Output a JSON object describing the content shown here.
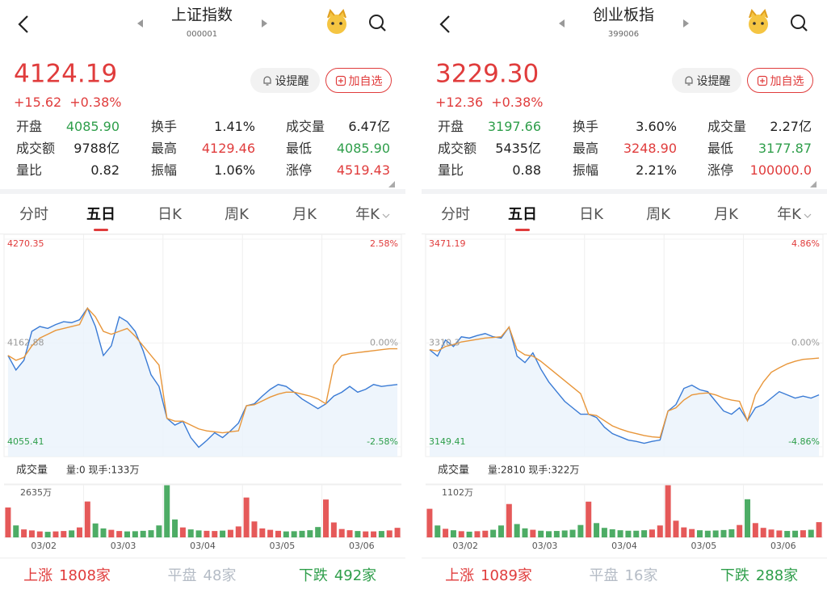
{
  "colors": {
    "up": "#e03c3c",
    "down": "#2e9e4a",
    "flat": "#b5bcc6"
  },
  "panels": [
    {
      "title": "上证指数",
      "code": "000001",
      "price": "4124.19",
      "change": "+15.62",
      "change_pct": "+0.38%",
      "buttons": [
        "设提醒",
        "加自选"
      ],
      "stats": [
        [
          {
            "label": "开盘",
            "value": "4085.90",
            "color": "#2e9e4a"
          },
          {
            "label": "换手",
            "value": "1.41%"
          },
          {
            "label": "成交量",
            "value": "6.47亿"
          }
        ],
        [
          {
            "label": "成交额",
            "value": "9788亿"
          },
          {
            "label": "最高",
            "value": "4129.46",
            "color": "#e03c3c"
          },
          {
            "label": "最低",
            "value": "4085.90",
            "color": "#2e9e4a"
          }
        ],
        [
          {
            "label": "量比",
            "value": "0.82"
          },
          {
            "label": "振幅",
            "value": "1.06%"
          },
          {
            "label": "涨停",
            "value": "4519.43",
            "color": "#e03c3c"
          }
        ]
      ],
      "tabs": [
        "分时",
        "五日",
        "日K",
        "周K",
        "月K",
        "年K"
      ],
      "active_tab": 1,
      "chart": {
        "type": "line",
        "ylim": [
          4055.41,
          4270.35
        ],
        "yticks": [
          4270.35,
          4162.88,
          4055.41
        ],
        "pct_ticks": [
          {
            "value": 2.58,
            "label": "2.58%"
          },
          {
            "value": 0,
            "label": "0.00%"
          },
          {
            "value": -2.58,
            "label": "-2.58%"
          }
        ],
        "categories": [
          "03/02",
          "03/03",
          "03/04",
          "03/05",
          "03/06"
        ],
        "series": [
          {
            "color": "#3a7bd5",
            "values": [
              4150,
              4135,
              4145,
              4175,
              4180,
              4178,
              4182,
              4185,
              4184,
              4187,
              4199,
              4180,
              4150,
              4160,
              4190,
              4185,
              4175,
              4155,
              4130,
              4118,
              4085,
              4078,
              4082,
              4065,
              4055,
              4062,
              4070,
              4065,
              4072,
              4080,
              4098,
              4100,
              4108,
              4115,
              4120,
              4118,
              4112,
              4105,
              4100,
              4095,
              4100,
              4108,
              4112,
              4118,
              4112,
              4115,
              4120,
              4118,
              4119,
              4120
            ]
          },
          {
            "color": "#e8963a",
            "values": [
              4150,
              4145,
              4148,
              4160,
              4168,
              4172,
              4176,
              4178,
              4180,
              4182,
              4199,
              4190,
              4175,
              4172,
              4175,
              4178,
              4170,
              4160,
              4150,
              4140,
              4085,
              4082,
              4082,
              4078,
              4074,
              4072,
              4071,
              4070,
              4071,
              4072,
              4098,
              4099,
              4103,
              4107,
              4110,
              4112,
              4112,
              4110,
              4108,
              4105,
              4100,
              4140,
              4150,
              4152,
              4153,
              4154,
              4155,
              4156,
              4157,
              4157
            ]
          }
        ]
      },
      "volume": {
        "type": "bar",
        "label": "成交量",
        "info": "量:0 现手:133万",
        "ylim": [
          0,
          2635
        ],
        "yticks": [
          {
            "value": 2635,
            "label": "2635万"
          }
        ],
        "values": [
          1500,
          600,
          400,
          350,
          300,
          280,
          300,
          320,
          350,
          500,
          1800,
          700,
          450,
          380,
          320,
          300,
          310,
          330,
          360,
          600,
          2635,
          900,
          500,
          400,
          350,
          330,
          320,
          340,
          380,
          550,
          2000,
          800,
          450,
          380,
          330,
          300,
          310,
          330,
          360,
          520,
          1900,
          750,
          420,
          360,
          320,
          300,
          300,
          320,
          350,
          480
        ]
      },
      "breadth": [
        {
          "label": "上涨",
          "value": "1808家",
          "color": "#e03c3c"
        },
        {
          "label": "平盘",
          "value": "48家",
          "color": "#b5bcc6"
        },
        {
          "label": "下跌",
          "value": "492家",
          "color": "#2e9e4a"
        }
      ]
    },
    {
      "title": "创业板指",
      "code": "399006",
      "price": "3229.30",
      "change": "+12.36",
      "change_pct": "+0.38%",
      "buttons": [
        "设提醒",
        "加自选"
      ],
      "stats": [
        [
          {
            "label": "开盘",
            "value": "3197.66",
            "color": "#2e9e4a"
          },
          {
            "label": "换手",
            "value": "3.60%"
          },
          {
            "label": "成交量",
            "value": "2.27亿"
          }
        ],
        [
          {
            "label": "成交额",
            "value": "5435亿"
          },
          {
            "label": "最高",
            "value": "3248.90",
            "color": "#e03c3c"
          },
          {
            "label": "最低",
            "value": "3177.87",
            "color": "#2e9e4a"
          }
        ],
        [
          {
            "label": "量比",
            "value": "0.88"
          },
          {
            "label": "振幅",
            "value": "2.21%"
          },
          {
            "label": "涨停",
            "value": "100000.0",
            "color": "#e03c3c"
          }
        ]
      ],
      "tabs": [
        "分时",
        "五日",
        "日K",
        "周K",
        "月K",
        "年K"
      ],
      "active_tab": 1,
      "chart": {
        "type": "line",
        "ylim": [
          3149.41,
          3471.19
        ],
        "yticks": [
          3471.19,
          3310.3,
          3149.41
        ],
        "pct_ticks": [
          {
            "value": 4.86,
            "label": "4.86%"
          },
          {
            "value": 0,
            "label": "0.00%"
          },
          {
            "value": -4.86,
            "label": "-4.86%"
          }
        ],
        "categories": [
          "03/02",
          "03/03",
          "03/04",
          "03/05",
          "03/06"
        ],
        "series": [
          {
            "color": "#3a7bd5",
            "values": [
              3300,
              3290,
              3315,
              3305,
              3320,
              3318,
              3322,
              3325,
              3320,
              3318,
              3335,
              3290,
              3280,
              3295,
              3270,
              3250,
              3235,
              3220,
              3210,
              3200,
              3200,
              3195,
              3180,
              3170,
              3165,
              3160,
              3158,
              3155,
              3158,
              3160,
              3205,
              3215,
              3240,
              3245,
              3238,
              3235,
              3220,
              3205,
              3200,
              3210,
              3190,
              3210,
              3215,
              3225,
              3235,
              3230,
              3225,
              3228,
              3225,
              3230
            ]
          },
          {
            "color": "#e8963a",
            "values": [
              3300,
              3298,
              3305,
              3308,
              3312,
              3314,
              3316,
              3318,
              3319,
              3320,
              3335,
              3300,
              3292,
              3290,
              3282,
              3272,
              3262,
              3252,
              3242,
              3232,
              3200,
              3198,
              3190,
              3182,
              3177,
              3173,
              3170,
              3167,
              3165,
              3164,
              3205,
              3210,
              3222,
              3230,
              3232,
              3233,
              3230,
              3225,
              3222,
              3220,
              3190,
              3230,
              3250,
              3265,
              3272,
              3278,
              3282,
              3285,
              3286,
              3287
            ]
          }
        ]
      },
      "volume": {
        "type": "bar",
        "label": "成交量",
        "info": "量:2810 现手:322万",
        "ylim": [
          0,
          1102
        ],
        "yticks": [
          {
            "value": 1102,
            "label": "1102万"
          }
        ],
        "values": [
          600,
          250,
          180,
          150,
          130,
          120,
          130,
          140,
          160,
          250,
          700,
          280,
          190,
          160,
          140,
          130,
          135,
          145,
          160,
          260,
          750,
          300,
          200,
          170,
          150,
          140,
          140,
          150,
          165,
          250,
          1102,
          350,
          210,
          175,
          150,
          140,
          145,
          155,
          170,
          260,
          800,
          300,
          200,
          165,
          145,
          135,
          140,
          150,
          160,
          320
        ]
      },
      "breadth": [
        {
          "label": "上涨",
          "value": "1089家",
          "color": "#e03c3c"
        },
        {
          "label": "平盘",
          "value": "16家",
          "color": "#b5bcc6"
        },
        {
          "label": "下跌",
          "value": "288家",
          "color": "#2e9e4a"
        }
      ]
    }
  ]
}
